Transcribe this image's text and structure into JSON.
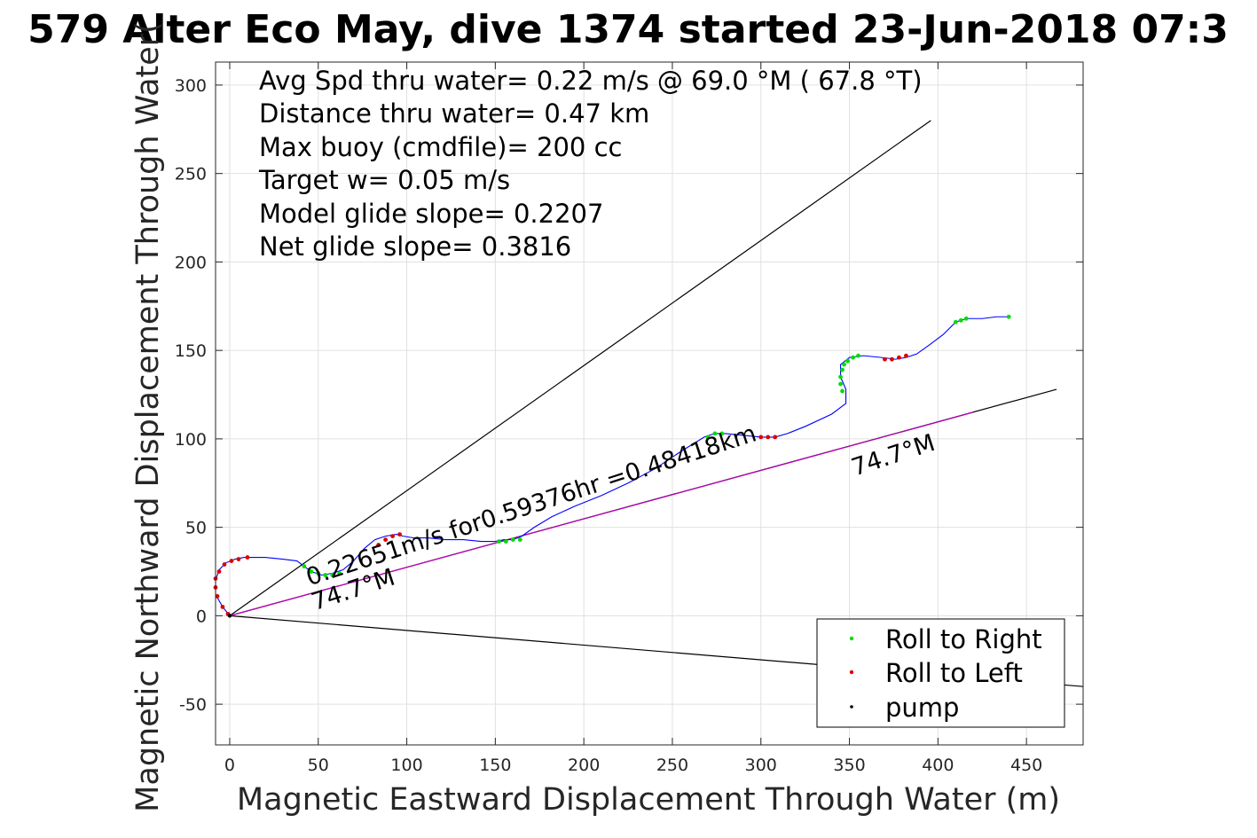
{
  "chart_data": {
    "type": "line",
    "title": "579 Alter Eco May, dive 1374 started 23-Jun-2018 07:3",
    "xlabel": "Magnetic Eastward Displacement Through Water (m)",
    "ylabel": "Magnetic Northward Displacement Through Water(",
    "xlim": [
      -8,
      482
    ],
    "ylim": [
      -73,
      313
    ],
    "xticks": [
      0,
      50,
      100,
      150,
      200,
      250,
      300,
      350,
      400,
      450
    ],
    "yticks": [
      -50,
      0,
      50,
      100,
      150,
      200,
      250,
      300
    ],
    "grid": true,
    "info_lines": [
      "Avg Spd thru water=  0.22 m/s @  69.0 °M ( 67.8 °T)",
      "Distance thru water=  0.47 km",
      "Max buoy (cmdfile)= 200 cc",
      "Target w= 0.05 m/s",
      "Model glide slope= 0.2207",
      "Net glide slope= 0.3816"
    ],
    "annotations": [
      {
        "text": "0.22651m/s for0.59376hr =0.48418km",
        "x": 45,
        "y": 17,
        "angle": -18
      },
      {
        "text": "74.7°M",
        "x": 48,
        "y": 3,
        "angle": -18
      },
      {
        "text": "74.7°M",
        "x": 353,
        "y": 79,
        "angle": -18
      }
    ],
    "reference_lines": [
      {
        "name": "upper-bound",
        "x": [
          0,
          396
        ],
        "y": [
          0,
          280
        ],
        "color": "#000000"
      },
      {
        "name": "lower-bound",
        "x": [
          0,
          482
        ],
        "y": [
          0,
          -40
        ],
        "color": "#000000"
      },
      {
        "name": "heading-line",
        "x": [
          0,
          467
        ],
        "y": [
          0,
          128
        ],
        "color": "#000000"
      },
      {
        "name": "heading-line-overlay",
        "x": [
          0,
          420
        ],
        "y": [
          0,
          115
        ],
        "color": "#c000c0"
      }
    ],
    "series": [
      {
        "name": "track",
        "color": "#0000ff",
        "x": [
          0,
          -4,
          -8,
          -8,
          -6,
          -2,
          3,
          8,
          20,
          30,
          38,
          42,
          46,
          52,
          58,
          64,
          70,
          76,
          82,
          88,
          94,
          98,
          104,
          112,
          122,
          132,
          142,
          150,
          155,
          160,
          165,
          172,
          182,
          195,
          210,
          225,
          240,
          255,
          268,
          274,
          280,
          290,
          300,
          308,
          315,
          325,
          340,
          348,
          348,
          345,
          345,
          350,
          358,
          368,
          376,
          382,
          388,
          395,
          403,
          410,
          416,
          425,
          433,
          441
        ],
        "y": [
          0,
          5,
          12,
          20,
          26,
          30,
          32,
          33,
          33,
          32,
          31,
          28,
          25,
          23,
          24,
          26,
          31,
          38,
          43,
          45,
          46,
          45,
          44,
          44,
          43,
          43,
          42,
          42,
          43,
          43,
          45,
          50,
          56,
          62,
          68,
          75,
          83,
          93,
          101,
          103,
          103,
          102,
          101,
          101,
          103,
          107,
          114,
          120,
          128,
          135,
          142,
          146,
          147,
          146,
          145,
          146,
          148,
          153,
          159,
          166,
          168,
          168,
          169,
          169
        ]
      }
    ],
    "markers": {
      "roll_right": {
        "color": "#00dd00",
        "x": [
          42,
          46,
          50,
          54,
          58,
          62,
          152,
          156,
          160,
          164,
          270,
          274,
          278,
          346,
          345,
          345,
          346,
          347,
          349,
          352,
          355,
          410,
          413,
          416,
          440
        ],
        "y": [
          28,
          25,
          24,
          23,
          23,
          24,
          42,
          42,
          43,
          43,
          101,
          103,
          103,
          127,
          131,
          135,
          139,
          142,
          144,
          146,
          147,
          166,
          167,
          168,
          169
        ]
      },
      "roll_left": {
        "color": "#dd0000",
        "x": [
          -1,
          -4,
          -7,
          -8,
          -8,
          -6,
          -3,
          1,
          5,
          10,
          84,
          88,
          92,
          96,
          300,
          304,
          308,
          370,
          374,
          378,
          382
        ],
        "y": [
          1,
          5,
          11,
          16,
          21,
          25,
          29,
          31,
          32,
          33,
          40,
          43,
          45,
          46,
          101,
          101,
          101,
          145,
          145,
          146,
          147
        ]
      },
      "pump": {
        "color": "#000000",
        "x": [
          0
        ],
        "y": [
          0
        ]
      }
    },
    "legend": {
      "position": "bottom-right",
      "entries": [
        {
          "label": "Roll to Right",
          "color": "#00dd00"
        },
        {
          "label": "Roll to Left",
          "color": "#dd0000"
        },
        {
          "label": "pump",
          "color": "#000000"
        }
      ]
    }
  }
}
